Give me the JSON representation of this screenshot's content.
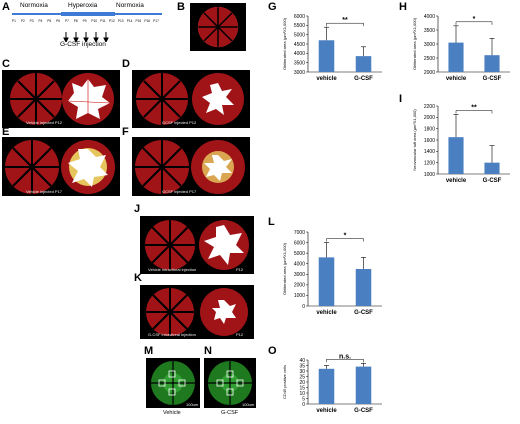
{
  "panels": {
    "A": "A",
    "B": "B",
    "C": "C",
    "D": "D",
    "E": "E",
    "F": "F",
    "G": "G",
    "H": "H",
    "I": "I",
    "J": "J",
    "K": "K",
    "L": "L",
    "M": "M",
    "N": "N",
    "O": "O"
  },
  "timeline": {
    "normoxia1": "Normoxia",
    "hyperoxia": "Hyperoxia",
    "normoxia2": "Normoxia",
    "injection": "G-CSF injection",
    "days": [
      "P1",
      "P2",
      "P3",
      "P4",
      "P5",
      "P6",
      "P7",
      "P8",
      "P9",
      "P10",
      "P11",
      "P12",
      "P13",
      "P14",
      "P15",
      "P16",
      "P17"
    ]
  },
  "captions": {
    "C": "Vehicle injected P12",
    "D": "GCSF injected P12",
    "E": "Vehicle injected P17",
    "F": "GCSF injected P17",
    "J_left": "Vehicle intravitreal injection",
    "J_right": "P12",
    "K_left": "G-CSF intravitreal injection",
    "K_right": "P12",
    "M": "Vehicle",
    "N": "G-CSF",
    "M_scale": "100um",
    "N_scale": "100um"
  },
  "colors": {
    "bar": "#4a7fc1",
    "retina": "#b0161a",
    "avascular": "#ffffff",
    "neovascular": "#f2e46a",
    "green": "#2f9e2f",
    "timeline": "#3d7bd6"
  },
  "chart_data": [
    {
      "id": "G",
      "type": "bar",
      "categories": [
        "vehicle",
        "G-CSF"
      ],
      "values": [
        4700,
        3850
      ],
      "errors": [
        700,
        500
      ],
      "ylabel": "Obliterated area (µm²X1,000)",
      "ylim": [
        3000,
        6000
      ],
      "yticks": [
        3000,
        3500,
        4000,
        4500,
        5000,
        5500,
        6000
      ],
      "significance": "**"
    },
    {
      "id": "H",
      "type": "bar",
      "categories": [
        "vehicle",
        "G-CSF"
      ],
      "values": [
        3050,
        2600
      ],
      "errors": [
        600,
        600
      ],
      "ylabel": "Obliterated area (µm²X1,000)",
      "ylim": [
        2000,
        4000
      ],
      "yticks": [
        2000,
        2500,
        3000,
        3500,
        4000
      ],
      "significance": "*"
    },
    {
      "id": "I",
      "type": "bar",
      "categories": [
        "vehicle",
        "G-CSF"
      ],
      "values": [
        1650,
        1200
      ],
      "errors": [
        400,
        300
      ],
      "ylabel": "Neovascular tuft area (µm²X1,000)",
      "ylim": [
        1000,
        2200
      ],
      "yticks": [
        1000,
        1200,
        1400,
        1600,
        1800,
        2000,
        2200
      ],
      "significance": "**"
    },
    {
      "id": "L",
      "type": "bar",
      "categories": [
        "vehicle",
        "G-CSF"
      ],
      "values": [
        4600,
        3500
      ],
      "errors": [
        1400,
        1100
      ],
      "ylabel": "Obliterated area (µm²X1,000)",
      "ylim": [
        0,
        7000
      ],
      "yticks": [
        0,
        1000,
        2000,
        3000,
        4000,
        5000,
        6000,
        7000
      ],
      "significance": "*"
    },
    {
      "id": "O",
      "type": "bar",
      "categories": [
        "vehicle",
        "G-CSF"
      ],
      "values": [
        32,
        34
      ],
      "errors": [
        3,
        3
      ],
      "ylabel": "CD45 positive cells",
      "ylim": [
        0,
        40
      ],
      "yticks": [
        0,
        5,
        10,
        15,
        20,
        25,
        30,
        35,
        40
      ],
      "significance": "n.s."
    }
  ]
}
